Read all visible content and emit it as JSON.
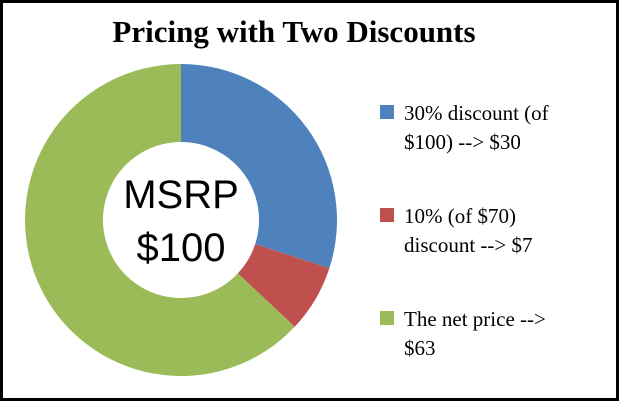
{
  "chart_data": {
    "type": "pie",
    "subtype": "donut",
    "title": "Pricing with Two Discounts",
    "total": 100,
    "start_angle_deg": 0,
    "direction": "clockwise",
    "hole_ratio": 0.5,
    "legend_position": "right",
    "center_label": {
      "line1": "MSRP",
      "line2": "$100"
    },
    "slices": [
      {
        "label": "30% discount (of $100) --> $30",
        "value": 30,
        "color": "#4F81BD"
      },
      {
        "label": "10% (of $70) discount --> $7",
        "value": 7,
        "color": "#C0504D"
      },
      {
        "label": "The net price --> $63",
        "value": 63,
        "color": "#9BBB59"
      }
    ]
  },
  "legend": {
    "items": [
      {
        "lines": [
          "30% discount (of",
          "$100) --> $30"
        ],
        "color": "#4F81BD"
      },
      {
        "lines": [
          "10% (of $70)",
          "discount --> $7"
        ],
        "color": "#C0504D"
      },
      {
        "lines": [
          "The net price -->",
          "$63"
        ],
        "color": "#9BBB59"
      }
    ]
  },
  "frame": {
    "border_color": "#000000",
    "background": "#ffffff"
  }
}
